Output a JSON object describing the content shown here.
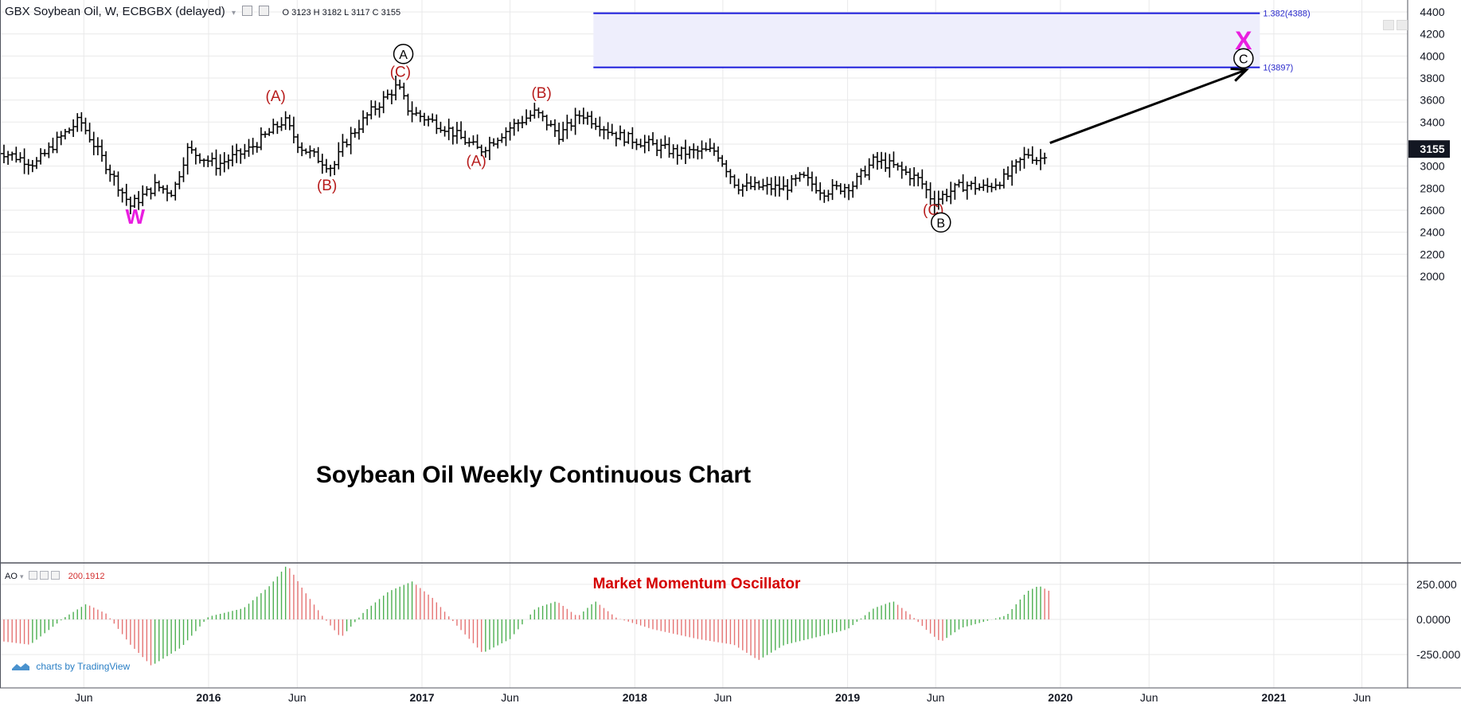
{
  "header": {
    "symbol": "GBX Soybean Oil, W, ECBGBX (delayed)",
    "ohlc": "O 3123 H 3182 L 3117 C 3155"
  },
  "ao_header": {
    "name": "AO",
    "value": "200.1912"
  },
  "branding": "charts by TradingView",
  "chart_data": [
    {
      "type": "ohlc",
      "title": "Soybean Oil Weekly Continuous Chart",
      "ylim": [
        1850,
        4480
      ],
      "y_ticks": [
        "4400",
        "4200",
        "4000",
        "3800",
        "3600",
        "3400",
        "3200",
        "3000",
        "2800",
        "2600",
        "2400",
        "2200",
        "2000"
      ],
      "x_ticks": [
        "Jun",
        "2016",
        "Jun",
        "2017",
        "Jun",
        "2018",
        "Jun",
        "2019",
        "Jun",
        "2020",
        "Jun",
        "2021",
        "Jun"
      ],
      "last_price": "3155",
      "series": [
        {
          "name": "GBX Soybean Oil",
          "anchors": [
            [
              "2015-01-01",
              3150
            ],
            [
              "2015-03-10",
              3020
            ],
            [
              "2015-04-20",
              3250
            ],
            [
              "2015-05-25",
              3420
            ],
            [
              "2015-06-20",
              3180
            ],
            [
              "2015-08-20",
              2640
            ],
            [
              "2015-10-01",
              2820
            ],
            [
              "2015-11-01",
              2760
            ],
            [
              "2015-11-25",
              3150
            ],
            [
              "2016-01-15",
              3010
            ],
            [
              "2016-03-10",
              3150
            ],
            [
              "2016-05-10",
              3420
            ],
            [
              "2016-06-05",
              3180
            ],
            [
              "2016-08-01",
              2980
            ],
            [
              "2016-08-20",
              3200
            ],
            [
              "2016-10-01",
              3470
            ],
            [
              "2016-11-20",
              3730
            ],
            [
              "2016-12-10",
              3500
            ],
            [
              "2017-02-10",
              3350
            ],
            [
              "2017-04-10",
              3140
            ],
            [
              "2017-06-01",
              3350
            ],
            [
              "2017-07-15",
              3490
            ],
            [
              "2017-08-25",
              3280
            ],
            [
              "2017-10-01",
              3480
            ],
            [
              "2017-12-01",
              3280
            ],
            [
              "2018-01-25",
              3200
            ],
            [
              "2018-03-15",
              3120
            ],
            [
              "2018-05-20",
              3140
            ],
            [
              "2018-06-25",
              2820
            ],
            [
              "2018-09-15",
              2800
            ],
            [
              "2018-10-15",
              2900
            ],
            [
              "2018-11-20",
              2770
            ],
            [
              "2019-01-10",
              2830
            ],
            [
              "2019-02-15",
              3050
            ],
            [
              "2019-03-20",
              3000
            ],
            [
              "2019-05-05",
              2870
            ],
            [
              "2019-05-28",
              2680
            ],
            [
              "2019-06-25",
              2770
            ],
            [
              "2019-07-20",
              2830
            ],
            [
              "2019-08-25",
              2800
            ],
            [
              "2019-10-01",
              2900
            ],
            [
              "2019-11-05",
              3120
            ],
            [
              "2019-11-25",
              3050
            ],
            [
              "2019-12-10",
              3155
            ]
          ]
        }
      ],
      "annotations": {
        "wave_labels": [
          {
            "text": "W",
            "date": "2015-08-28",
            "price": 2475,
            "role": "major"
          },
          {
            "text": "(A)",
            "date": "2016-04-25",
            "price": 3590,
            "role": "minor"
          },
          {
            "text": "(B)",
            "date": "2016-07-22",
            "price": 2780,
            "role": "minor"
          },
          {
            "text": "(C)",
            "date": "2016-11-25",
            "price": 3810,
            "role": "minor"
          },
          {
            "text": "A",
            "date": "2016-11-30",
            "price": 3975,
            "role": "circled"
          },
          {
            "text": "(A)",
            "date": "2017-04-04",
            "price": 3000,
            "role": "minor"
          },
          {
            "text": "(B)",
            "date": "2017-07-25",
            "price": 3620,
            "role": "minor"
          },
          {
            "text": "(C)",
            "date": "2019-05-28",
            "price": 2555,
            "role": "minor"
          },
          {
            "text": "B",
            "date": "2019-06-10",
            "price": 2445,
            "role": "circled"
          },
          {
            "text": "X",
            "date": "2020-11-10",
            "price": 4060,
            "role": "major"
          },
          {
            "text": "C",
            "date": "2020-11-10",
            "price": 3935,
            "role": "circled"
          }
        ],
        "fib_levels": [
          {
            "label": "1.382(4388)",
            "price": 4388
          },
          {
            "label": "1(3897)",
            "price": 3897
          }
        ],
        "target_zone": {
          "from_date": "2017-10-22",
          "to_date": "2020-12-08",
          "low": 3897,
          "high": 4388
        },
        "projection_arrow": {
          "from_date": "2019-12-14",
          "from_price": 3210,
          "to_date": "2020-11-15",
          "to_price": 3875
        }
      }
    },
    {
      "type": "bar",
      "title": "Market Momentum Oscillator",
      "ylim": [
        -330,
        330
      ],
      "y_ticks": [
        "250.000",
        "0.0000",
        "-250.000"
      ],
      "current_value": "200.1912",
      "series": [
        {
          "name": "AO",
          "anchors": [
            [
              "2015-01-01",
              -150
            ],
            [
              "2015-03-01",
              -180
            ],
            [
              "2015-05-01",
              20
            ],
            [
              "2015-06-05",
              110
            ],
            [
              "2015-07-10",
              40
            ],
            [
              "2015-08-20",
              -180
            ],
            [
              "2015-09-25",
              -330
            ],
            [
              "2015-11-15",
              -200
            ],
            [
              "2016-01-01",
              20
            ],
            [
              "2016-03-01",
              80
            ],
            [
              "2016-04-15",
              240
            ],
            [
              "2016-05-15",
              390
            ],
            [
              "2016-06-10",
              220
            ],
            [
              "2016-07-15",
              20
            ],
            [
              "2016-08-15",
              -130
            ],
            [
              "2016-09-25",
              60
            ],
            [
              "2016-11-05",
              200
            ],
            [
              "2016-12-15",
              270
            ],
            [
              "2017-01-20",
              150
            ],
            [
              "2017-03-01",
              -40
            ],
            [
              "2017-04-15",
              -240
            ],
            [
              "2017-06-01",
              -140
            ],
            [
              "2017-07-15",
              80
            ],
            [
              "2017-08-20",
              130
            ],
            [
              "2017-09-25",
              20
            ],
            [
              "2017-10-25",
              130
            ],
            [
              "2017-12-01",
              10
            ],
            [
              "2018-02-01",
              -70
            ],
            [
              "2018-04-20",
              -140
            ],
            [
              "2018-06-20",
              -180
            ],
            [
              "2018-08-01",
              -290
            ],
            [
              "2018-09-15",
              -180
            ],
            [
              "2018-11-05",
              -130
            ],
            [
              "2019-01-01",
              -70
            ],
            [
              "2019-02-15",
              80
            ],
            [
              "2019-03-20",
              130
            ],
            [
              "2019-04-20",
              30
            ],
            [
              "2019-05-20",
              -90
            ],
            [
              "2019-06-10",
              -160
            ],
            [
              "2019-07-15",
              -60
            ],
            [
              "2019-08-20",
              -20
            ],
            [
              "2019-10-01",
              30
            ],
            [
              "2019-11-05",
              200
            ],
            [
              "2019-11-25",
              240
            ],
            [
              "2019-12-14",
              200
            ]
          ]
        }
      ]
    }
  ]
}
